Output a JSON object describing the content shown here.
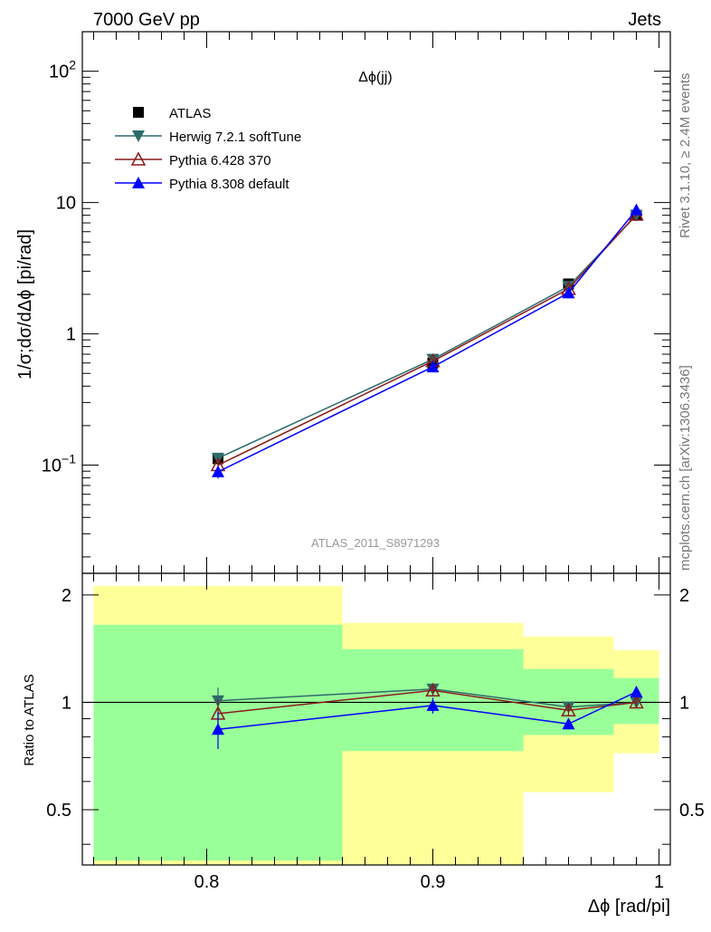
{
  "header": {
    "left": "7000 GeV pp",
    "right": "Jets"
  },
  "side_text": {
    "rivet": "Rivet 3.1.10, ≥ 2.4M events",
    "mcplots": "mcplots.cern.ch [arXiv:1306.3436]"
  },
  "chart_data": [
    {
      "type": "line",
      "title": "Δϕ(jj)",
      "ylabel": "1/σ;dσ/dΔϕ [pi/rad]",
      "watermark": "ATLAS_2011_S8971293",
      "y_scale": "log",
      "xlim": [
        0.745,
        1.005
      ],
      "ylim": [
        0.015,
        200
      ],
      "y_ticks": [
        {
          "v": 100,
          "base": "10",
          "exp": "2"
        },
        {
          "v": 10,
          "base": "10",
          "exp": ""
        },
        {
          "v": 1,
          "base": "1",
          "exp": ""
        },
        {
          "v": 0.1,
          "base": "10",
          "exp": "−1"
        }
      ],
      "legend_placement": "top-left",
      "series": [
        {
          "name": "ATLAS",
          "marker": "square",
          "color": "#000000",
          "line": false,
          "x": [
            0.805,
            0.9,
            0.96,
            0.99
          ],
          "y": [
            0.112,
            0.6,
            2.4,
            8.0
          ],
          "err": [
            0.012,
            0.03,
            0.1,
            0.3
          ]
        },
        {
          "name": "Herwig 7.2.1 softTune",
          "marker": "triangle-down",
          "color": "#2e6b6b",
          "line": true,
          "x": [
            0.805,
            0.9,
            0.96,
            0.99
          ],
          "y": [
            0.113,
            0.64,
            2.3,
            8.0
          ],
          "err": [
            0.01,
            0.03,
            0.1,
            0.3
          ]
        },
        {
          "name": "Pythia 6.428 370",
          "marker": "triangle-up-open",
          "color": "#8b1a1a",
          "line": true,
          "x": [
            0.805,
            0.9,
            0.96,
            0.99
          ],
          "y": [
            0.1,
            0.62,
            2.2,
            8.1
          ],
          "err": [
            0.01,
            0.03,
            0.1,
            0.3
          ]
        },
        {
          "name": "Pythia 8.308 default",
          "marker": "triangle-up",
          "color": "#0000ff",
          "line": true,
          "x": [
            0.805,
            0.9,
            0.96,
            0.99
          ],
          "y": [
            0.089,
            0.56,
            2.05,
            8.8
          ],
          "err": [
            0.01,
            0.03,
            0.1,
            0.3
          ]
        }
      ]
    },
    {
      "type": "line",
      "ylabel": "Ratio to ATLAS",
      "xlabel": "Δϕ [rad/pi]",
      "xlim": [
        0.745,
        1.005
      ],
      "ylim": [
        0.35,
        2.3
      ],
      "y_scale": "log",
      "x_ticks": [
        {
          "v": 0.8,
          "label": "0.8"
        },
        {
          "v": 0.9,
          "label": "0.9"
        },
        {
          "v": 1.0,
          "label": "1"
        }
      ],
      "y_ticks": [
        {
          "v": 0.5,
          "label": "0.5"
        },
        {
          "v": 1,
          "label": "1"
        },
        {
          "v": 2,
          "label": "2"
        }
      ],
      "bands": [
        {
          "x0": 0.75,
          "x1": 0.86,
          "yellow": [
            0.35,
            2.12
          ],
          "green": [
            0.36,
            1.65
          ]
        },
        {
          "x0": 0.86,
          "x1": 0.94,
          "yellow": [
            0.35,
            1.67
          ],
          "green": [
            0.73,
            1.41
          ]
        },
        {
          "x0": 0.94,
          "x1": 0.98,
          "yellow": [
            0.56,
            1.53
          ],
          "green": [
            0.81,
            1.24
          ]
        },
        {
          "x0": 0.98,
          "x1": 1.0,
          "yellow": [
            0.72,
            1.4
          ],
          "green": [
            0.87,
            1.17
          ]
        }
      ],
      "series": [
        {
          "name": "Herwig 7.2.1 softTune",
          "marker": "triangle-down",
          "color": "#2e6b6b",
          "x": [
            0.805,
            0.9,
            0.96,
            0.99
          ],
          "y": [
            1.01,
            1.09,
            0.97,
            1.0
          ],
          "err": [
            0.09,
            0.04,
            0.03,
            0.03
          ]
        },
        {
          "name": "Pythia 6.428 370",
          "marker": "triangle-up-open",
          "color": "#8b1a1a",
          "x": [
            0.805,
            0.9,
            0.96,
            0.99
          ],
          "y": [
            0.93,
            1.08,
            0.95,
            1.0
          ],
          "err": [
            0.09,
            0.04,
            0.03,
            0.03
          ]
        },
        {
          "name": "Pythia 8.308 default",
          "marker": "triangle-up",
          "color": "#0000ff",
          "x": [
            0.805,
            0.9,
            0.96,
            0.99
          ],
          "y": [
            0.84,
            0.98,
            0.87,
            1.07
          ],
          "err": [
            0.1,
            0.05,
            0.03,
            0.03
          ]
        }
      ]
    }
  ]
}
